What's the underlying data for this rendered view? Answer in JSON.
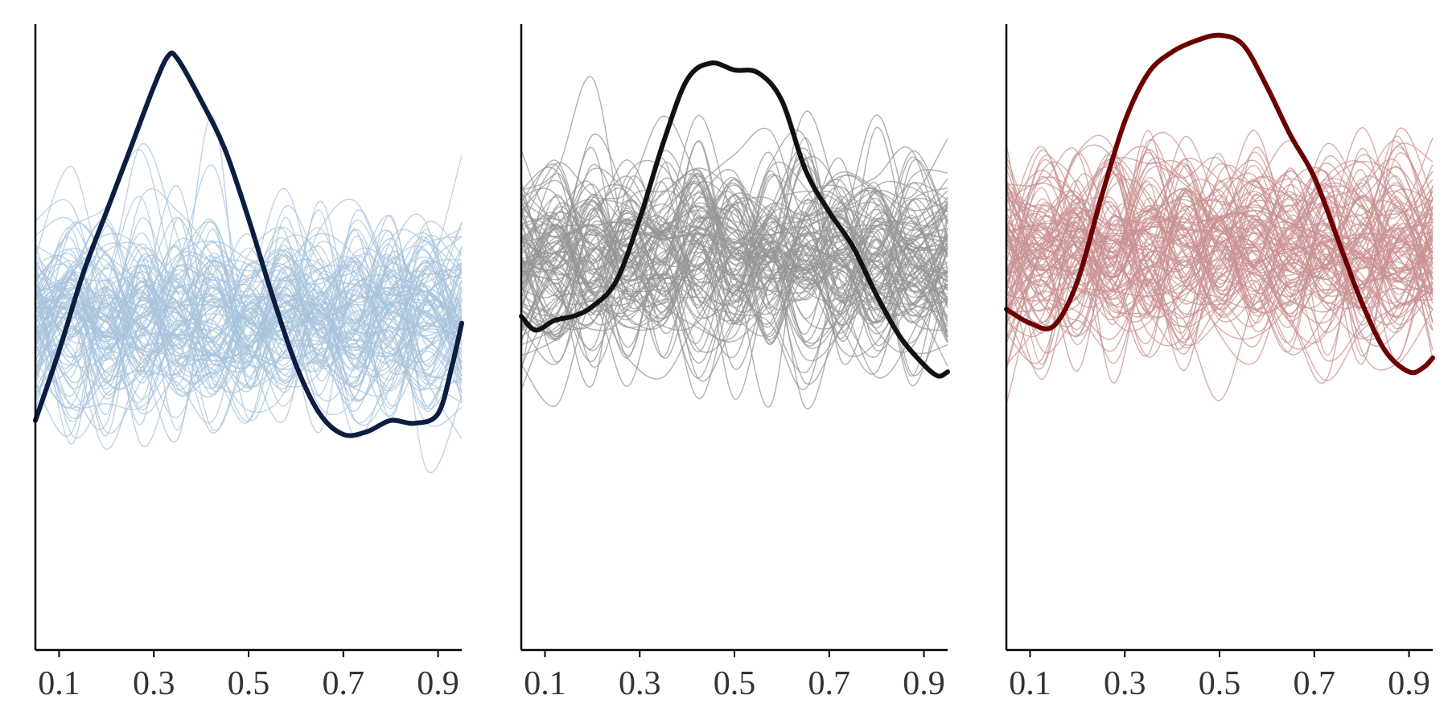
{
  "chart_data": [
    {
      "type": "line",
      "title": "",
      "xlabel": "",
      "ylabel": "",
      "xlim": [
        0.05,
        0.95
      ],
      "ylim": [
        -2.55,
        1.95
      ],
      "x_ticks": [
        "0.1",
        "0.3",
        "0.5",
        "0.7",
        "0.9"
      ],
      "grid": false,
      "legend": "none",
      "background_color": "#a8c4dc",
      "highlight_color": "#0b1d40",
      "background_series": {
        "count": 100,
        "center": -0.15,
        "spread": 0.42,
        "smooth_knots": 12,
        "seed": 11
      },
      "series": [
        {
          "name": "",
          "x": [
            0.05,
            0.1,
            0.15,
            0.2,
            0.25,
            0.3,
            0.33,
            0.35,
            0.4,
            0.45,
            0.5,
            0.55,
            0.6,
            0.65,
            0.7,
            0.75,
            0.8,
            0.85,
            0.9,
            0.93,
            0.95
          ],
          "y": [
            -0.9,
            -0.4,
            0.15,
            0.6,
            1.05,
            1.5,
            1.72,
            1.7,
            1.4,
            1.05,
            0.55,
            0.0,
            -0.5,
            -0.85,
            -1.0,
            -0.98,
            -0.9,
            -0.92,
            -0.85,
            -0.5,
            -0.2
          ]
        }
      ]
    },
    {
      "type": "line",
      "title": "",
      "xlabel": "",
      "ylabel": "",
      "xlim": [
        0.05,
        0.95
      ],
      "ylim": [
        -2.55,
        1.95
      ],
      "x_ticks": [
        "0.1",
        "0.3",
        "0.5",
        "0.7",
        "0.9"
      ],
      "grid": false,
      "legend": "none",
      "background_color": "#969696",
      "highlight_color": "#111111",
      "background_series": {
        "count": 100,
        "center": 0.25,
        "spread": 0.42,
        "smooth_knots": 12,
        "seed": 23
      },
      "series": [
        {
          "name": "",
          "x": [
            0.05,
            0.08,
            0.12,
            0.16,
            0.2,
            0.25,
            0.3,
            0.35,
            0.4,
            0.45,
            0.5,
            0.55,
            0.6,
            0.65,
            0.7,
            0.75,
            0.8,
            0.85,
            0.9,
            0.93,
            0.95
          ],
          "y": [
            -0.15,
            -0.25,
            -0.18,
            -0.15,
            -0.08,
            0.1,
            0.55,
            1.1,
            1.55,
            1.67,
            1.62,
            1.6,
            1.4,
            0.9,
            0.6,
            0.35,
            0.0,
            -0.3,
            -0.5,
            -0.58,
            -0.55
          ]
        }
      ]
    },
    {
      "type": "line",
      "title": "",
      "xlabel": "",
      "ylabel": "",
      "xlim": [
        0.05,
        0.95
      ],
      "ylim": [
        -2.55,
        1.95
      ],
      "x_ticks": [
        "0.1",
        "0.3",
        "0.5",
        "0.7",
        "0.9"
      ],
      "grid": false,
      "legend": "none",
      "background_color": "#c99192",
      "highlight_color": "#6b0000",
      "background_series": {
        "count": 100,
        "center": 0.35,
        "spread": 0.42,
        "smooth_knots": 12,
        "seed": 37
      },
      "series": [
        {
          "name": "",
          "x": [
            0.05,
            0.1,
            0.15,
            0.2,
            0.25,
            0.3,
            0.35,
            0.4,
            0.45,
            0.5,
            0.55,
            0.6,
            0.65,
            0.7,
            0.75,
            0.8,
            0.85,
            0.9,
            0.93,
            0.95
          ],
          "y": [
            -0.1,
            -0.2,
            -0.22,
            0.1,
            0.7,
            1.25,
            1.6,
            1.75,
            1.83,
            1.87,
            1.8,
            1.5,
            1.15,
            0.85,
            0.4,
            -0.05,
            -0.4,
            -0.55,
            -0.52,
            -0.45
          ]
        }
      ]
    }
  ]
}
